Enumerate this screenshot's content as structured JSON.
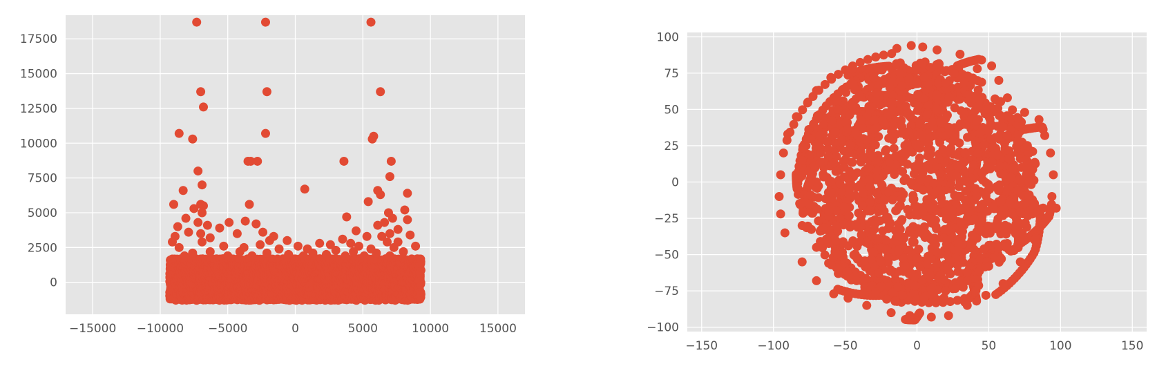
{
  "figure": {
    "background": "#ffffff",
    "style": "ggplot"
  },
  "colors": {
    "plot_background": "#e5e5e5",
    "grid": "#ffffff",
    "marker": "#e24a33",
    "tick_text": "#555555"
  },
  "chart_data": [
    {
      "type": "scatter",
      "title": "",
      "xlabel": "",
      "ylabel": "",
      "xlim": [
        -17000,
        17000
      ],
      "ylim": [
        -2300,
        19200
      ],
      "grid": true,
      "legend": "none",
      "x_ticks": [
        -15000,
        -10000,
        -5000,
        0,
        5000,
        10000,
        15000
      ],
      "x_tick_labels": [
        "−15000",
        "−10000",
        "−5000",
        "0",
        "5000",
        "10000",
        "15000"
      ],
      "y_ticks": [
        0,
        2500,
        5000,
        7500,
        10000,
        12500,
        15000,
        17500
      ],
      "y_tick_labels": [
        "0",
        "2500",
        "5000",
        "7500",
        "10000",
        "12500",
        "15000",
        "17500"
      ],
      "dense_band": {
        "x_range": [
          -9300,
          9300
        ],
        "y_range": [
          -1300,
          1700
        ]
      },
      "points": [
        [
          -7300,
          18700
        ],
        [
          -2200,
          18700
        ],
        [
          5600,
          18700
        ],
        [
          -7000,
          13700
        ],
        [
          -2100,
          13700
        ],
        [
          6300,
          13700
        ],
        [
          -6800,
          12600
        ],
        [
          -8600,
          10700
        ],
        [
          -7600,
          10300
        ],
        [
          -2200,
          10700
        ],
        [
          5800,
          10500
        ],
        [
          5700,
          10300
        ],
        [
          -7200,
          8000
        ],
        [
          -6900,
          7000
        ],
        [
          -3500,
          8700
        ],
        [
          -3300,
          8700
        ],
        [
          -2800,
          8700
        ],
        [
          3600,
          8700
        ],
        [
          7100,
          8700
        ],
        [
          7000,
          7600
        ],
        [
          -8300,
          6600
        ],
        [
          700,
          6700
        ],
        [
          6100,
          6600
        ],
        [
          6300,
          6300
        ],
        [
          8300,
          6400
        ],
        [
          -9000,
          5600
        ],
        [
          -7500,
          5300
        ],
        [
          -7000,
          5600
        ],
        [
          -6800,
          5500
        ],
        [
          -3400,
          5600
        ],
        [
          5400,
          5800
        ],
        [
          8100,
          5200
        ],
        [
          6900,
          5000
        ],
        [
          -6900,
          5000
        ],
        [
          -8100,
          4600
        ],
        [
          -7200,
          4300
        ],
        [
          -6500,
          4100
        ],
        [
          -4900,
          4300
        ],
        [
          -3700,
          4400
        ],
        [
          3800,
          4700
        ],
        [
          6600,
          4300
        ],
        [
          7200,
          4600
        ],
        [
          8300,
          4500
        ],
        [
          -8700,
          4000
        ],
        [
          -5600,
          3900
        ],
        [
          -2900,
          4200
        ],
        [
          4500,
          3700
        ],
        [
          6100,
          4100
        ],
        [
          7600,
          3800
        ],
        [
          -8900,
          3300
        ],
        [
          -7900,
          3600
        ],
        [
          -7000,
          3500
        ],
        [
          -6300,
          3200
        ],
        [
          -4300,
          3500
        ],
        [
          -2400,
          3600
        ],
        [
          -1600,
          3300
        ],
        [
          -600,
          3000
        ],
        [
          3500,
          3100
        ],
        [
          5300,
          3300
        ],
        [
          6400,
          3300
        ],
        [
          7000,
          3500
        ],
        [
          8500,
          3400
        ],
        [
          -9100,
          2900
        ],
        [
          -6900,
          2900
        ],
        [
          -1900,
          3000
        ],
        [
          1800,
          2800
        ],
        [
          2600,
          2700
        ],
        [
          4100,
          2800
        ],
        [
          6800,
          2900
        ],
        [
          7600,
          2900
        ],
        [
          -8600,
          2500
        ],
        [
          -5300,
          2600
        ],
        [
          -3800,
          2500
        ],
        [
          -2600,
          2700
        ],
        [
          -1200,
          2400
        ],
        [
          200,
          2600
        ],
        [
          900,
          2400
        ],
        [
          3000,
          2300
        ],
        [
          4700,
          2600
        ],
        [
          5600,
          2400
        ],
        [
          7300,
          2500
        ],
        [
          8900,
          2600
        ],
        [
          -7600,
          2100
        ],
        [
          -6300,
          2200
        ],
        [
          -4100,
          2200
        ],
        [
          -2100,
          2100
        ],
        [
          -500,
          2000
        ],
        [
          1300,
          2100
        ],
        [
          2300,
          2000
        ],
        [
          4300,
          2200
        ],
        [
          6000,
          2100
        ],
        [
          8000,
          2200
        ],
        [
          -8200,
          1900
        ],
        [
          -5000,
          1900
        ],
        [
          -3200,
          1900
        ],
        [
          600,
          1900
        ],
        [
          3700,
          1900
        ],
        [
          5100,
          1900
        ],
        [
          7000,
          1900
        ]
      ]
    },
    {
      "type": "scatter",
      "title": "",
      "xlabel": "",
      "ylabel": "",
      "xlim": [
        -160,
        160
      ],
      "ylim": [
        -103,
        103
      ],
      "grid": true,
      "legend": "none",
      "x_ticks": [
        -150,
        -100,
        -50,
        0,
        50,
        100,
        150
      ],
      "x_tick_labels": [
        "−150",
        "−100",
        "−50",
        "0",
        "50",
        "100",
        "150"
      ],
      "y_ticks": [
        -100,
        -75,
        -50,
        -25,
        0,
        25,
        50,
        75,
        100
      ],
      "y_tick_labels": [
        "−100",
        "−75",
        "−50",
        "−25",
        "0",
        "25",
        "50",
        "75",
        "100"
      ],
      "point_cloud": {
        "center": [
          0,
          0
        ],
        "radius": 95,
        "shape": "roughly circular dense cloud of curved strands"
      },
      "points": [
        [
          -4,
          94
        ],
        [
          4,
          93
        ],
        [
          -14,
          92
        ],
        [
          14,
          91
        ],
        [
          30,
          88
        ],
        [
          45,
          84
        ],
        [
          52,
          80
        ],
        [
          -45,
          78
        ],
        [
          -60,
          72
        ],
        [
          -70,
          63
        ],
        [
          -76,
          55
        ],
        [
          -84,
          45
        ],
        [
          -90,
          33
        ],
        [
          -93,
          20
        ],
        [
          -95,
          5
        ],
        [
          -96,
          -10
        ],
        [
          -95,
          -22
        ],
        [
          -92,
          -35
        ],
        [
          -80,
          -55
        ],
        [
          -70,
          -68
        ],
        [
          -58,
          -77
        ],
        [
          -48,
          -80
        ],
        [
          -35,
          -85
        ],
        [
          -18,
          -90
        ],
        [
          -5,
          -92
        ],
        [
          10,
          -93
        ],
        [
          22,
          -92
        ],
        [
          35,
          -85
        ],
        [
          48,
          -78
        ],
        [
          60,
          -70
        ],
        [
          72,
          -55
        ],
        [
          82,
          -40
        ],
        [
          90,
          -25
        ],
        [
          94,
          -10
        ],
        [
          97,
          -18
        ],
        [
          95,
          5
        ],
        [
          93,
          20
        ],
        [
          89,
          32
        ],
        [
          85,
          43
        ],
        [
          75,
          48
        ],
        [
          63,
          58
        ],
        [
          57,
          70
        ],
        [
          42,
          78
        ],
        [
          -30,
          72
        ],
        [
          -40,
          60
        ],
        [
          -55,
          50
        ],
        [
          -65,
          40
        ],
        [
          -75,
          30
        ],
        [
          -80,
          15
        ],
        [
          -70,
          0
        ],
        [
          -75,
          -15
        ],
        [
          -80,
          -30
        ],
        [
          -70,
          -45
        ],
        [
          -55,
          -60
        ],
        [
          -42,
          -68
        ],
        [
          -25,
          -72
        ],
        [
          -10,
          -78
        ],
        [
          5,
          -80
        ],
        [
          20,
          -75
        ],
        [
          35,
          -68
        ],
        [
          50,
          -58
        ],
        [
          62,
          -45
        ],
        [
          70,
          -30
        ],
        [
          75,
          -15
        ],
        [
          78,
          0
        ],
        [
          76,
          15
        ],
        [
          70,
          28
        ],
        [
          60,
          38
        ],
        [
          50,
          50
        ],
        [
          36,
          60
        ],
        [
          20,
          68
        ],
        [
          5,
          72
        ],
        [
          -12,
          75
        ]
      ]
    }
  ]
}
